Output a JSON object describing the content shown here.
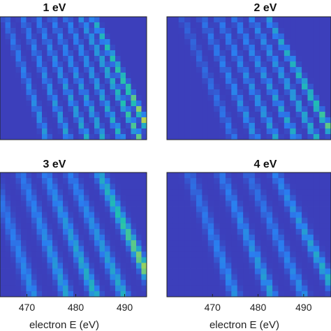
{
  "chart_data": [
    {
      "type": "heatmap",
      "title": "1 eV",
      "xlabel": "",
      "tick_labels": [],
      "colormap": "parula",
      "colors": {
        "background": "#3d3bb8",
        "low": "#2a7ef0",
        "mid": "#20c0b0",
        "high": "#f4dc26"
      },
      "bands": [
        {
          "start": 452,
          "slope": 0.5,
          "amplitude": 0.45
        },
        {
          "start": 458,
          "slope": 0.55,
          "amplitude": 0.5
        },
        {
          "start": 463,
          "slope": 0.6,
          "amplitude": 0.55
        },
        {
          "start": 468,
          "slope": 0.62,
          "amplitude": 0.55
        },
        {
          "start": 473,
          "slope": 0.66,
          "amplitude": 0.6
        },
        {
          "start": 478,
          "slope": 0.7,
          "amplitude": 0.75
        },
        {
          "start": 482,
          "slope": 0.72,
          "amplitude": 0.95
        }
      ]
    },
    {
      "type": "heatmap",
      "title": "2 eV",
      "xlabel": "",
      "tick_labels": [],
      "colormap": "parula",
      "colors": {
        "background": "#3d3bb8",
        "low": "#2a7ef0",
        "mid": "#20c0b0",
        "high": "#f4dc26"
      },
      "bands": [
        {
          "start": 458,
          "slope": 0.55,
          "amplitude": 0.3
        },
        {
          "start": 464,
          "slope": 0.58,
          "amplitude": 0.45
        },
        {
          "start": 469,
          "slope": 0.62,
          "amplitude": 0.5
        },
        {
          "start": 474,
          "slope": 0.66,
          "amplitude": 0.55
        },
        {
          "start": 479,
          "slope": 0.7,
          "amplitude": 0.6
        },
        {
          "start": 484,
          "slope": 0.72,
          "amplitude": 0.8
        }
      ]
    },
    {
      "type": "heatmap",
      "title": "3 eV",
      "xlabel": "electron E (eV)",
      "tick_labels": [
        "470",
        "480",
        "490"
      ],
      "ticks": [
        470,
        480,
        490
      ],
      "colormap": "parula",
      "colors": {
        "background": "#3d3bb8",
        "low": "#2a7ef0",
        "mid": "#20c0b0",
        "high": "#f4dc26"
      },
      "bands": [
        {
          "start": 463,
          "slope": 0.5,
          "amplitude": 0.4
        },
        {
          "start": 469,
          "slope": 0.55,
          "amplitude": 0.5
        },
        {
          "start": 474,
          "slope": 0.6,
          "amplitude": 0.6
        },
        {
          "start": 479,
          "slope": 0.65,
          "amplitude": 0.55
        },
        {
          "start": 485,
          "slope": 0.7,
          "amplitude": 0.95
        }
      ]
    },
    {
      "type": "heatmap",
      "title": "4 eV",
      "xlabel": "electron E (eV)",
      "tick_labels": [
        "470",
        "480",
        "490"
      ],
      "ticks": [
        470,
        480,
        490
      ],
      "colormap": "parula",
      "colors": {
        "background": "#3d3bb8",
        "low": "#2a7ef0",
        "mid": "#20c0b0",
        "high": "#f4dc26"
      },
      "bands": [
        {
          "start": 465,
          "slope": 0.5,
          "amplitude": 0.4
        },
        {
          "start": 472,
          "slope": 0.55,
          "amplitude": 0.5
        },
        {
          "start": 478,
          "slope": 0.6,
          "amplitude": 0.4
        },
        {
          "start": 484,
          "slope": 0.66,
          "amplitude": 0.6
        }
      ]
    }
  ]
}
